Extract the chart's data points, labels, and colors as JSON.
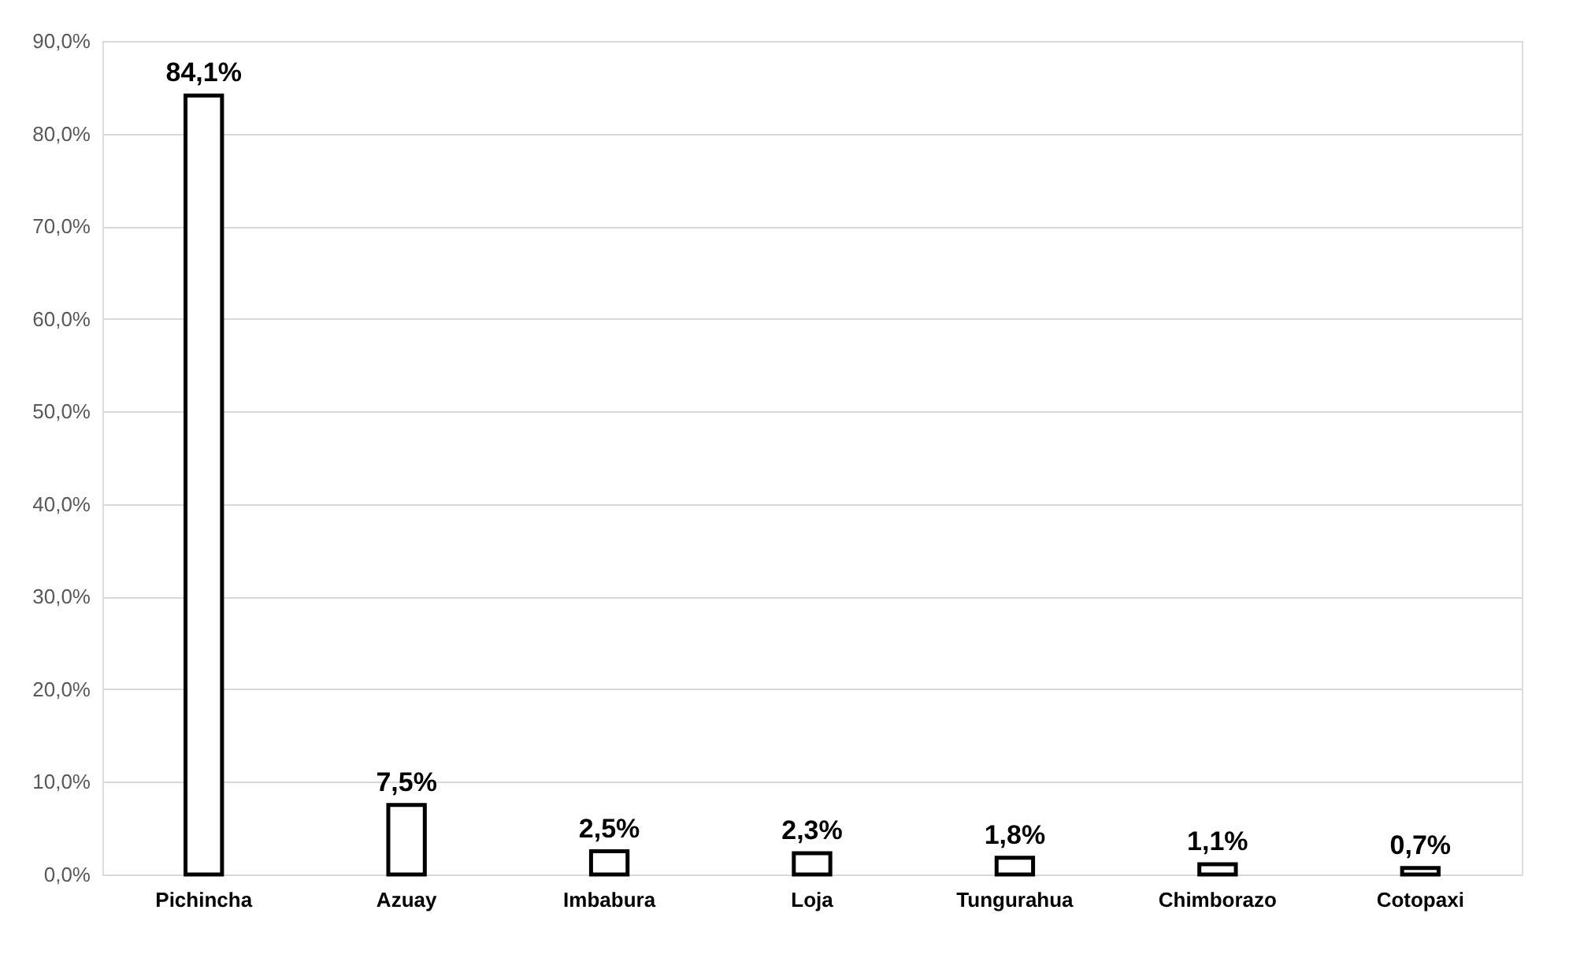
{
  "chart_data": {
    "type": "bar",
    "categories": [
      "Pichincha",
      "Azuay",
      "Imbabura",
      "Loja",
      "Tungurahua",
      "Chimborazo",
      "Cotopaxi"
    ],
    "values": [
      84.1,
      7.5,
      2.5,
      2.3,
      1.8,
      1.1,
      0.7
    ],
    "value_labels": [
      "84,1%",
      "7,5%",
      "2,5%",
      "2,3%",
      "1,8%",
      "1,1%",
      "0,7%"
    ],
    "color": "#ffffff",
    "ylim": [
      0,
      90
    ],
    "yticks": [
      {
        "value": 0,
        "label": "0,0%"
      },
      {
        "value": 10,
        "label": "10,0%"
      },
      {
        "value": 20,
        "label": "20,0%"
      },
      {
        "value": 30,
        "label": "30,0%"
      },
      {
        "value": 40,
        "label": "40,0%"
      },
      {
        "value": 50,
        "label": "50,0%"
      },
      {
        "value": 60,
        "label": "60,0%"
      },
      {
        "value": 70,
        "label": "70,0%"
      },
      {
        "value": 80,
        "label": "80,0%"
      },
      {
        "value": 90,
        "label": "90,0%"
      }
    ],
    "grid": "y"
  }
}
